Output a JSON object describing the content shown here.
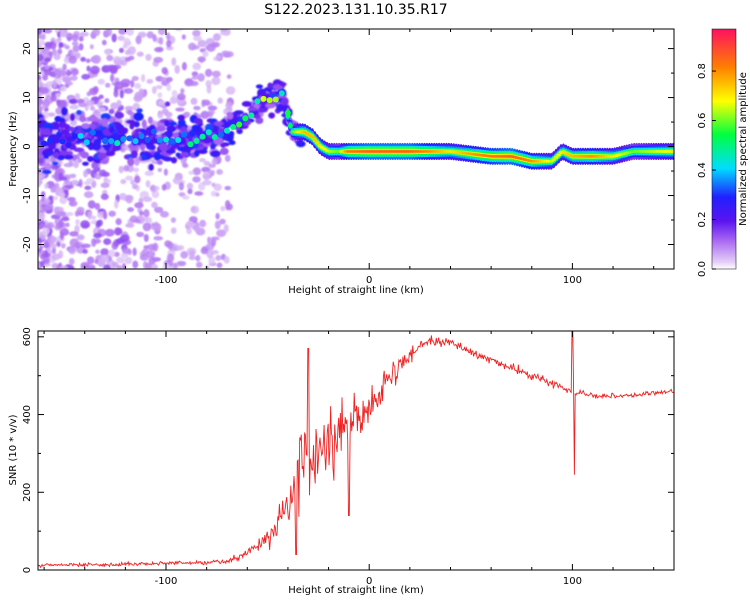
{
  "title": "S122.2023.131.10.35.R17",
  "chart_data": [
    {
      "type": "heatmap",
      "xlabel": "Height of straight line (km)",
      "ylabel": "Frequency (Hz)",
      "xlim": [
        -163,
        150
      ],
      "ylim": [
        -25,
        24
      ],
      "xticks": [
        -100,
        0,
        100
      ],
      "yticks": [
        -20,
        -10,
        0,
        10,
        20
      ],
      "colorbar": {
        "label": "Normalized spectral amplitude",
        "range": [
          0,
          0.97
        ],
        "ticks": [
          0.0,
          0.2,
          0.4,
          0.6,
          0.8
        ],
        "colors": [
          "#ffffff",
          "#d6b8f4",
          "#7d2ff0",
          "#2a1cff",
          "#00e0ff",
          "#00ff40",
          "#ffff00",
          "#ff8000",
          "#ff1060"
        ]
      },
      "ridge": {
        "x": [
          -163,
          -140,
          -120,
          -100,
          -90,
          -80,
          -70,
          -62,
          -55,
          -48,
          -43,
          -38,
          -36,
          -32,
          -28,
          -24,
          -20,
          -15,
          -10,
          0,
          20,
          40,
          60,
          70,
          80,
          90,
          95,
          100,
          110,
          120,
          130,
          150
        ],
        "y": [
          1,
          2,
          2,
          1,
          1,
          2,
          3,
          5,
          8,
          10,
          11,
          3,
          3,
          3,
          2,
          0,
          -1,
          -1,
          -1,
          -1,
          -1,
          -1,
          -2,
          -2,
          -3,
          -3,
          -1,
          -2,
          -2,
          -2,
          -1,
          -1
        ],
        "amplitude": [
          0.3,
          0.35,
          0.4,
          0.4,
          0.45,
          0.45,
          0.45,
          0.5,
          0.55,
          0.55,
          0.5,
          0.55,
          0.65,
          0.75,
          0.75,
          0.7,
          0.65,
          0.6,
          0.85,
          0.9,
          0.9,
          0.7,
          0.85,
          0.9,
          0.8,
          0.65,
          0.7,
          0.75,
          0.8,
          0.7,
          0.6,
          0.7
        ]
      }
    },
    {
      "type": "line",
      "xlabel": "Height of straight line (km)",
      "ylabel": "SNR (10 * v/v)",
      "xlim": [
        -163,
        150
      ],
      "ylim": [
        0,
        615
      ],
      "xticks": [
        -100,
        0,
        100
      ],
      "yticks": [
        0,
        200,
        400,
        600
      ],
      "color": "#ee2222",
      "trend": {
        "x": [
          -163,
          -120,
          -90,
          -70,
          -60,
          -50,
          -45,
          -40,
          -35,
          -30,
          -25,
          -20,
          -10,
          0,
          5,
          10,
          15,
          20,
          25,
          30,
          40,
          50,
          60,
          70,
          80,
          90,
          95,
          100,
          105,
          110,
          120,
          130,
          140,
          150
        ],
        "y": [
          12,
          15,
          18,
          22,
          45,
          80,
          120,
          150,
          220,
          270,
          300,
          330,
          380,
          420,
          450,
          490,
          520,
          550,
          580,
          590,
          585,
          560,
          540,
          520,
          500,
          480,
          470,
          460,
          455,
          450,
          448,
          450,
          455,
          460
        ]
      },
      "noise": {
        "x": [
          -163,
          -100,
          -70,
          -60,
          -50,
          -40,
          -35,
          -30,
          -20,
          -10,
          0,
          10,
          20,
          30,
          50,
          80,
          100,
          120,
          150
        ],
        "amplitude": [
          4,
          5,
          6,
          10,
          20,
          70,
          110,
          110,
          90,
          75,
          55,
          30,
          18,
          12,
          10,
          10,
          8,
          6,
          6
        ]
      },
      "spikes": [
        {
          "x": -30,
          "y": 570
        },
        {
          "x": -36,
          "y": 40
        },
        {
          "x": -10,
          "y": 140
        },
        {
          "x": 100,
          "y": 615
        },
        {
          "x": 101,
          "y": 245
        }
      ]
    }
  ]
}
